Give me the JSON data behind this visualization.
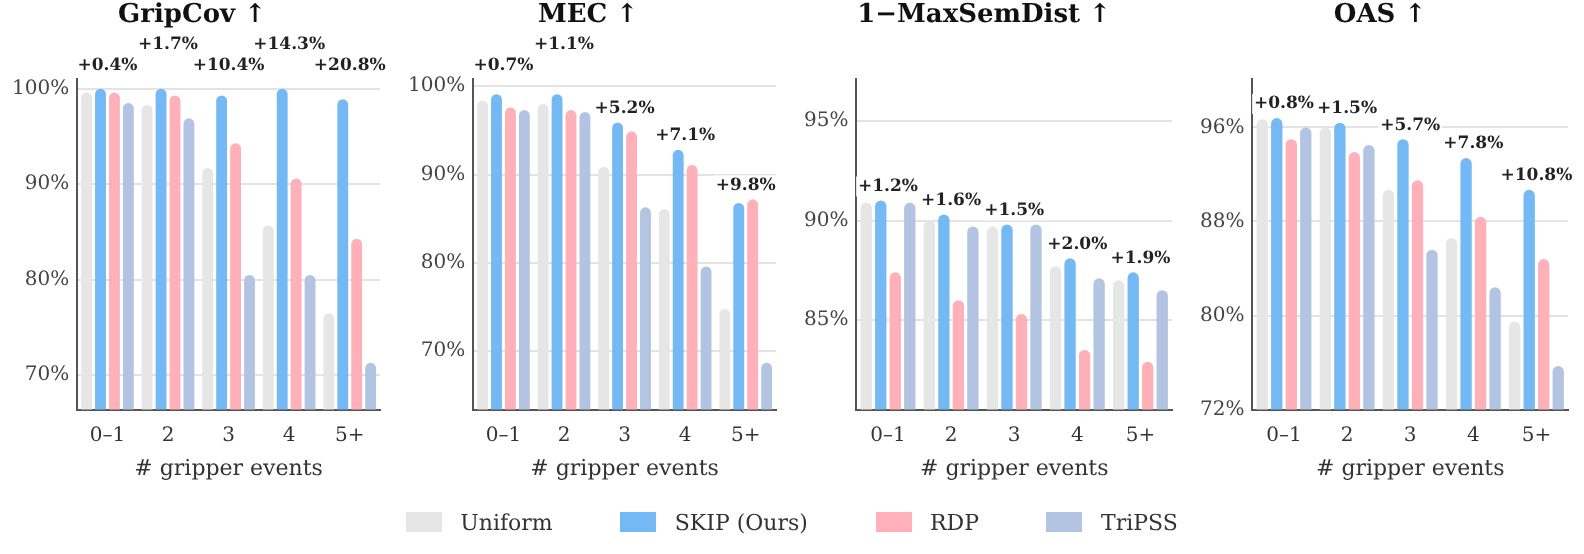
{
  "chart_data": [
    {
      "type": "bar",
      "title": "GripCov ↑",
      "xlabel": "# gripper events",
      "categories": [
        "0–1",
        "2",
        "3",
        "4",
        "5+"
      ],
      "series": [
        {
          "name": "Uniform",
          "color": "#e6e6e6",
          "values": [
            99.6,
            98.3,
            91.7,
            85.7,
            76.5
          ]
        },
        {
          "name": "SKIP (Ours)",
          "color": "#74b9f4",
          "values": [
            100.0,
            100.0,
            99.3,
            100.0,
            98.9
          ]
        },
        {
          "name": "RDP",
          "color": "#ffb0b8",
          "values": [
            99.6,
            99.3,
            94.3,
            90.6,
            84.3
          ]
        },
        {
          "name": "TriPSS",
          "color": "#b2c4e2",
          "values": [
            98.5,
            96.9,
            80.5,
            80.5,
            71.3
          ]
        }
      ],
      "ylim": [
        66.4,
        101
      ],
      "yticks": [
        {
          "value": 70,
          "label": "70%"
        },
        {
          "value": 80,
          "label": "80%"
        },
        {
          "value": 90,
          "label": "90%"
        },
        {
          "value": 100,
          "label": "100%"
        }
      ],
      "annotations": [
        "+0.4%",
        "+1.7%",
        "+10.4%",
        "+14.3%",
        "+20.8%"
      ],
      "grid": "y",
      "legend": "bottom"
    },
    {
      "type": "bar",
      "title": "MEC ↑",
      "xlabel": "# gripper events",
      "categories": [
        "0–1",
        "2",
        "3",
        "4",
        "5+"
      ],
      "series": [
        {
          "name": "Uniform",
          "color": "#e6e6e6",
          "values": [
            98.4,
            98.0,
            90.9,
            86.1,
            74.8
          ]
        },
        {
          "name": "SKIP (Ours)",
          "color": "#74b9f4",
          "values": [
            99.1,
            99.1,
            95.9,
            92.8,
            86.8
          ]
        },
        {
          "name": "RDP",
          "color": "#ffb0b8",
          "values": [
            97.6,
            97.3,
            94.9,
            91.1,
            87.2
          ]
        },
        {
          "name": "TriPSS",
          "color": "#b2c4e2",
          "values": [
            97.3,
            97.1,
            86.3,
            79.6,
            68.7
          ]
        }
      ],
      "ylim": [
        63.4,
        100.8
      ],
      "yticks": [
        {
          "value": 70,
          "label": "70%"
        },
        {
          "value": 80,
          "label": "80%"
        },
        {
          "value": 90,
          "label": "90%"
        },
        {
          "value": 100,
          "label": "100%"
        }
      ],
      "annotations": [
        "+0.7%",
        "+1.1%",
        "+5.2%",
        "+7.1%",
        "+9.8%"
      ],
      "grid": "y",
      "legend": "bottom"
    },
    {
      "type": "bar",
      "title": "1−MaxSemDist ↑",
      "xlabel": "# gripper events",
      "categories": [
        "0–1",
        "2",
        "3",
        "4",
        "5+"
      ],
      "series": [
        {
          "name": "Uniform",
          "color": "#e6e6e6",
          "values": [
            90.9,
            90.0,
            89.7,
            87.7,
            87.0
          ]
        },
        {
          "name": "SKIP (Ours)",
          "color": "#74b9f4",
          "values": [
            91.0,
            90.3,
            89.8,
            88.1,
            87.4
          ]
        },
        {
          "name": "RDP",
          "color": "#ffb0b8",
          "values": [
            87.4,
            86.0,
            85.3,
            83.5,
            82.9
          ]
        },
        {
          "name": "TriPSS",
          "color": "#b2c4e2",
          "values": [
            90.9,
            89.7,
            89.8,
            87.1,
            86.5
          ]
        }
      ],
      "ylim": [
        80.5,
        97.1
      ],
      "yticks": [
        {
          "value": 85,
          "label": "85%"
        },
        {
          "value": 90,
          "label": "90%"
        },
        {
          "value": 95,
          "label": "95%"
        }
      ],
      "annotations": [
        "+1.2%",
        "+1.6%",
        "+1.5%",
        "+2.0%",
        "+1.9%"
      ],
      "grid": "y",
      "legend": "bottom"
    },
    {
      "type": "bar",
      "title": "OAS ↑",
      "xlabel": "# gripper events",
      "categories": [
        "0–1",
        "2",
        "3",
        "4",
        "5+"
      ],
      "series": [
        {
          "name": "Uniform",
          "color": "#e6e6e6",
          "values": [
            96.7,
            96.0,
            90.7,
            86.6,
            79.5
          ]
        },
        {
          "name": "SKIP (Ours)",
          "color": "#74b9f4",
          "values": [
            96.8,
            96.4,
            95.0,
            93.4,
            90.7
          ]
        },
        {
          "name": "RDP",
          "color": "#ffb0b8",
          "values": [
            95.0,
            93.9,
            91.5,
            88.4,
            84.8
          ]
        },
        {
          "name": "TriPSS",
          "color": "#b2c4e2",
          "values": [
            96.0,
            94.5,
            85.6,
            82.4,
            75.7
          ]
        }
      ],
      "ylim": [
        72,
        100.1
      ],
      "yticks": [
        {
          "value": 72,
          "label": "72%"
        },
        {
          "value": 80,
          "label": "80%"
        },
        {
          "value": 88,
          "label": "88%"
        },
        {
          "value": 96,
          "label": "96%"
        }
      ],
      "annotations": [
        "+0.8%",
        "+1.5%",
        "+5.7%",
        "+7.8%",
        "+10.8%"
      ],
      "grid": "y",
      "legend": "bottom"
    }
  ]
}
